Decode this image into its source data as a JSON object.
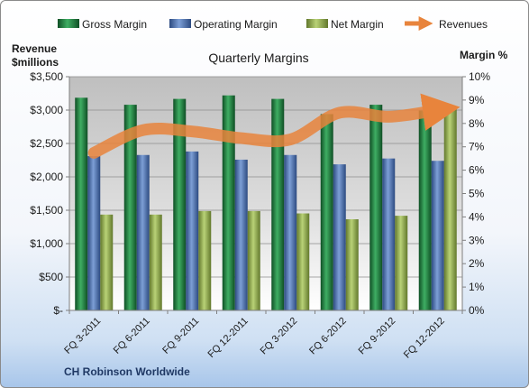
{
  "chart_data": {
    "type": "bar",
    "title": "Quarterly Margins",
    "footer": "CH Robinson Worldwide",
    "y_left_label_line1": "Revenue",
    "y_left_label_line2": "$millions",
    "y_right_label": "Margin %",
    "ylim_left": [
      0,
      3500
    ],
    "ylim_right": [
      0,
      10
    ],
    "y_left_ticks": [
      "$-",
      "$500",
      "$1,000",
      "$1,500",
      "$2,000",
      "$2,500",
      "$3,000",
      "$3,500"
    ],
    "y_right_ticks": [
      "0%",
      "1%",
      "2%",
      "3%",
      "4%",
      "5%",
      "6%",
      "7%",
      "8%",
      "9%",
      "10%"
    ],
    "categories": [
      "FQ 3-2011",
      "FQ 6-2011",
      "FQ 9-2011",
      "FQ 12-2011",
      "FQ 3-2012",
      "FQ 6-2012",
      "FQ 9-2012",
      "FQ 12-2012"
    ],
    "series": [
      {
        "name": "Gross Margin",
        "axis": "right",
        "kind": "bar",
        "color": "#1e7a3c",
        "values": [
          9.1,
          8.8,
          9.05,
          9.2,
          9.05,
          8.4,
          8.8,
          8.55
        ]
      },
      {
        "name": "Operating Margin",
        "axis": "right",
        "kind": "bar",
        "color": "#4a6fae",
        "values": [
          6.6,
          6.65,
          6.8,
          6.45,
          6.65,
          6.25,
          6.5,
          6.4
        ]
      },
      {
        "name": "Net Margin",
        "axis": "right",
        "kind": "bar",
        "color": "#94b050",
        "values": [
          4.1,
          4.1,
          4.25,
          4.25,
          4.15,
          3.9,
          4.05,
          8.6
        ]
      },
      {
        "name": "Revenues",
        "axis": "left",
        "kind": "line",
        "color": "#e8843c",
        "values": [
          2360,
          2700,
          2680,
          2580,
          2560,
          2960,
          2900,
          3000
        ]
      }
    ],
    "grid": true,
    "legend": "top"
  }
}
